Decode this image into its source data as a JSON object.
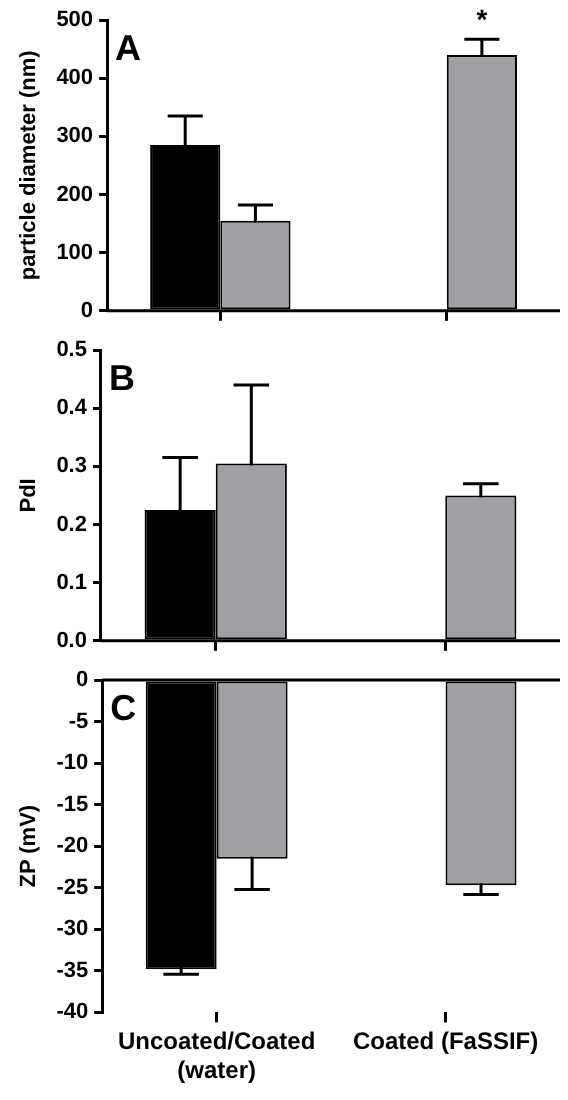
{
  "chart_data": [
    {
      "type": "bar",
      "ylabel": "particle diameter (nm)",
      "categories": [
        null,
        null
      ],
      "series": [
        {
          "color": "#000000",
          "values": [
            285,
            null
          ],
          "errors": [
            50,
            null
          ]
        },
        {
          "color": "#a0a0a4",
          "values": [
            155,
            440
          ],
          "errors": [
            27,
            27
          ]
        }
      ],
      "ylim": [
        0,
        500
      ],
      "yticks": [
        0,
        100,
        200,
        300,
        400,
        500
      ],
      "grid": false,
      "legend": false,
      "tick_labels": "y",
      "annotations": [
        "A",
        "*"
      ]
    },
    {
      "type": "bar",
      "ylabel": "PdI",
      "categories": [
        null,
        null
      ],
      "series": [
        {
          "color": "#000000",
          "values": [
            0.225,
            null
          ],
          "errors": [
            0.09,
            null
          ]
        },
        {
          "color": "#a0a0a4",
          "values": [
            0.305,
            0.25
          ],
          "errors": [
            0.135,
            0.02
          ]
        }
      ],
      "ylim": [
        0,
        0.5
      ],
      "yticks": [
        {
          "value": 0,
          "label": "0.0"
        },
        0.1,
        0.2,
        0.3,
        0.4,
        0.5
      ],
      "grid": false,
      "legend": false,
      "tick_labels": "y",
      "annotations": [
        "B"
      ]
    },
    {
      "type": "bar",
      "ylabel": "ZP (mV)",
      "categories": [
        "Uncoated/Coated (water)",
        "Coated (FaSSIF)"
      ],
      "series": [
        {
          "color": "#000000",
          "values": [
            -34.8,
            null
          ],
          "errors": [
            0.6,
            null
          ]
        },
        {
          "color": "#a0a0a4",
          "values": [
            -21.5,
            -24.7
          ],
          "errors": [
            3.7,
            1.1
          ]
        }
      ],
      "ylim": [
        -40,
        0
      ],
      "yticks": [
        -40,
        -35,
        -30,
        -25,
        -20,
        -15,
        -10,
        -5,
        0
      ],
      "grid": false,
      "legend": false,
      "annotations": [
        "C"
      ]
    }
  ]
}
